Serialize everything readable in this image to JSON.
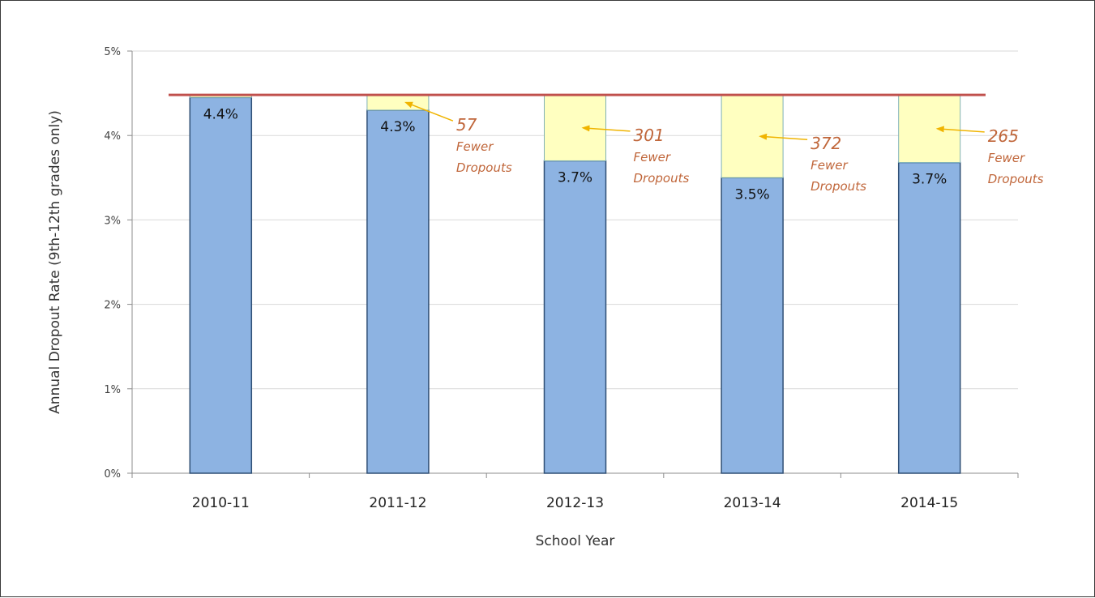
{
  "chart_data": {
    "type": "bar",
    "title": "",
    "xlabel": "School Year",
    "ylabel": "Annual Dropout Rate (9th-12th grades only)",
    "ylim": [
      0,
      5
    ],
    "yticks": [
      "0%",
      "1%",
      "2%",
      "3%",
      "4%",
      "5%"
    ],
    "ytick_values": [
      0,
      1,
      2,
      3,
      4,
      5
    ],
    "grid": true,
    "categories": [
      "2010-11",
      "2011-12",
      "2012-13",
      "2013-14",
      "2014-15"
    ],
    "series": [
      {
        "values": [
          4.45,
          4.3,
          3.7,
          3.5,
          3.68
        ],
        "color": "#8db3e2"
      },
      {
        "values": [
          0.03,
          0.18,
          0.78,
          0.98,
          0.8
        ],
        "color": "#ffffc0"
      }
    ],
    "bar_labels": [
      "4.4%",
      "4.3%",
      "3.7%",
      "3.5%",
      "3.7%"
    ],
    "reference_line": {
      "value": 4.48,
      "color": "#c0504d"
    },
    "annotations": [
      {
        "category": "2011-12",
        "number": "57",
        "line1": "Fewer",
        "line2": "Dropouts"
      },
      {
        "category": "2012-13",
        "number": "301",
        "line1": "Fewer",
        "line2": "Dropouts"
      },
      {
        "category": "2013-14",
        "number": "372",
        "line1": "Fewer",
        "line2": "Dropouts"
      },
      {
        "category": "2014-15",
        "number": "265",
        "line1": "Fewer",
        "line2": "Dropouts"
      }
    ],
    "arrow_color": "#f0b400"
  }
}
